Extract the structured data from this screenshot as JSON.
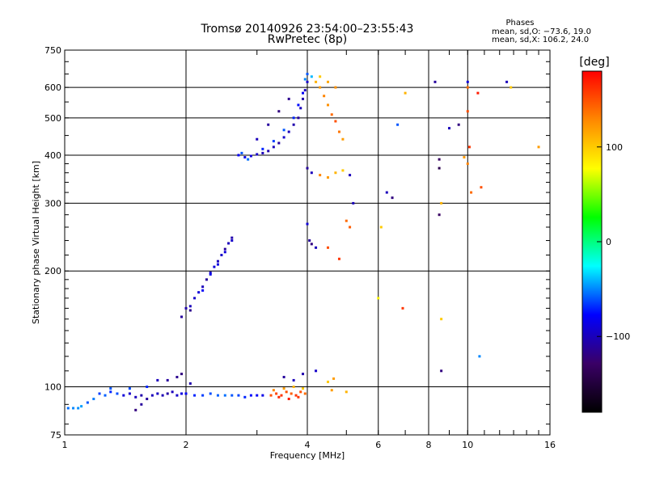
{
  "chart_data": {
    "type": "scatter",
    "title": "Tromsø 20140926 23:54:00–23:55:43",
    "subtitle": "RwPretec (8p)",
    "xlabel": "Frequency [MHz]",
    "ylabel": "Stationary phase Virtual Height [km]",
    "x_scale": "log",
    "y_scale": "log",
    "xlim": [
      1,
      16
    ],
    "ylim": [
      75,
      750
    ],
    "x_ticks": [
      1,
      2,
      4,
      6,
      8,
      10,
      16
    ],
    "x_tick_labels": [
      "1",
      "2",
      "4",
      "6",
      "8",
      "10",
      "16"
    ],
    "y_ticks": [
      75,
      100,
      200,
      300,
      400,
      500,
      600,
      750
    ],
    "y_tick_labels": [
      "75",
      "100",
      "200",
      "300",
      "400",
      "500",
      "600",
      "750"
    ],
    "grid": true,
    "legend": {
      "title": "Phases",
      "lines": [
        "mean, sd,O: −73.6, 19.0",
        "mean, sd,X: 106.2, 24.0"
      ],
      "position": "top-right"
    },
    "colorbar": {
      "label": "[deg]",
      "min": -180,
      "max": 180,
      "ticks": [
        100,
        0,
        -100
      ],
      "tick_labels": [
        "100",
        "0",
        "−100"
      ],
      "colors": [
        "#000000",
        "#3a0066",
        "#0000ff",
        "#00ffff",
        "#00ff00",
        "#ffff00",
        "#ff8800",
        "#ff0000"
      ]
    },
    "points": [
      [
        1.02,
        88,
        -55
      ],
      [
        1.05,
        88,
        -50
      ],
      [
        1.08,
        88,
        -48
      ],
      [
        1.1,
        89,
        -45
      ],
      [
        1.14,
        91,
        -60
      ],
      [
        1.18,
        93,
        -52
      ],
      [
        1.22,
        96,
        -65
      ],
      [
        1.26,
        95,
        -58
      ],
      [
        1.3,
        97,
        -70
      ],
      [
        1.35,
        96,
        -62
      ],
      [
        1.4,
        95,
        -90
      ],
      [
        1.45,
        96,
        -95
      ],
      [
        1.5,
        94,
        -100
      ],
      [
        1.55,
        95,
        -105
      ],
      [
        1.6,
        93,
        -110
      ],
      [
        1.65,
        95,
        -100
      ],
      [
        1.7,
        96,
        -98
      ],
      [
        1.75,
        95,
        -102
      ],
      [
        1.8,
        96,
        -108
      ],
      [
        1.85,
        97,
        -100
      ],
      [
        1.9,
        95,
        -95
      ],
      [
        1.95,
        96,
        -88
      ],
      [
        2.0,
        96,
        -80
      ],
      [
        2.1,
        95,
        -70
      ],
      [
        2.2,
        95,
        -65
      ],
      [
        2.3,
        96,
        -62
      ],
      [
        2.4,
        95,
        -58
      ],
      [
        2.5,
        95,
        -55
      ],
      [
        2.6,
        95,
        -60
      ],
      [
        2.7,
        95,
        -64
      ],
      [
        2.8,
        94,
        -70
      ],
      [
        2.9,
        95,
        -75
      ],
      [
        3.0,
        95,
        -80
      ],
      [
        3.1,
        95,
        -85
      ],
      [
        1.3,
        99,
        -60
      ],
      [
        1.45,
        99,
        -62
      ],
      [
        1.6,
        100,
        -70
      ],
      [
        1.7,
        104,
        -100
      ],
      [
        1.8,
        104,
        -110
      ],
      [
        1.9,
        106,
        -115
      ],
      [
        1.95,
        108,
        -120
      ],
      [
        2.05,
        102,
        -105
      ],
      [
        1.55,
        90,
        -110
      ],
      [
        1.5,
        87,
        -120
      ],
      [
        3.25,
        95,
        150
      ],
      [
        3.35,
        96,
        155
      ],
      [
        3.45,
        95,
        160
      ],
      [
        3.55,
        97,
        150
      ],
      [
        3.65,
        96,
        145
      ],
      [
        3.75,
        95,
        160
      ],
      [
        3.85,
        97,
        150
      ],
      [
        3.95,
        96,
        140
      ],
      [
        3.3,
        98,
        130
      ],
      [
        3.5,
        99,
        120
      ],
      [
        3.7,
        100,
        110
      ],
      [
        3.9,
        99,
        100
      ],
      [
        3.4,
        94,
        165
      ],
      [
        3.6,
        93,
        170
      ],
      [
        3.8,
        94,
        160
      ],
      [
        4.6,
        98,
        120
      ],
      [
        5.0,
        97,
        110
      ],
      [
        3.5,
        106,
        -110
      ],
      [
        3.7,
        104,
        -100
      ],
      [
        3.9,
        108,
        -105
      ],
      [
        4.2,
        110,
        -95
      ],
      [
        4.5,
        103,
        100
      ],
      [
        4.65,
        105,
        120
      ],
      [
        1.95,
        152,
        -110
      ],
      [
        2.0,
        160,
        -105
      ],
      [
        2.05,
        162,
        -100
      ],
      [
        2.1,
        170,
        -95
      ],
      [
        2.15,
        176,
        -90
      ],
      [
        2.2,
        182,
        -100
      ],
      [
        2.25,
        190,
        -110
      ],
      [
        2.3,
        198,
        -95
      ],
      [
        2.35,
        205,
        -90
      ],
      [
        2.4,
        212,
        -100
      ],
      [
        2.45,
        220,
        -95
      ],
      [
        2.5,
        228,
        -110
      ],
      [
        2.55,
        236,
        -100
      ],
      [
        2.6,
        244,
        -105
      ],
      [
        2.2,
        178,
        -80
      ],
      [
        2.3,
        196,
        -85
      ],
      [
        2.4,
        208,
        -88
      ],
      [
        2.5,
        224,
        -90
      ],
      [
        2.6,
        240,
        -95
      ],
      [
        2.05,
        158,
        -115
      ],
      [
        2.7,
        400,
        -80
      ],
      [
        2.8,
        395,
        -85
      ],
      [
        2.9,
        398,
        -90
      ],
      [
        3.0,
        402,
        -95
      ],
      [
        3.1,
        405,
        -100
      ],
      [
        3.2,
        410,
        -105
      ],
      [
        3.3,
        420,
        -100
      ],
      [
        3.4,
        430,
        -110
      ],
      [
        3.5,
        445,
        -95
      ],
      [
        3.6,
        460,
        -100
      ],
      [
        3.7,
        480,
        -105
      ],
      [
        3.8,
        500,
        -110
      ],
      [
        3.85,
        530,
        -100
      ],
      [
        3.9,
        560,
        -105
      ],
      [
        3.95,
        590,
        -100
      ],
      [
        4.0,
        620,
        -95
      ],
      [
        3.1,
        415,
        -70
      ],
      [
        3.3,
        435,
        -65
      ],
      [
        3.5,
        465,
        -60
      ],
      [
        3.7,
        500,
        -70
      ],
      [
        3.8,
        540,
        -75
      ],
      [
        3.9,
        580,
        -80
      ],
      [
        3.4,
        520,
        -120
      ],
      [
        3.6,
        560,
        -115
      ],
      [
        3.2,
        480,
        -110
      ],
      [
        3.0,
        440,
        -100
      ],
      [
        2.75,
        405,
        -60
      ],
      [
        2.85,
        390,
        -55
      ],
      [
        4.0,
        650,
        -60
      ],
      [
        3.95,
        630,
        -50
      ],
      [
        4.1,
        640,
        -40
      ],
      [
        4.2,
        620,
        110
      ],
      [
        4.3,
        600,
        120
      ],
      [
        4.4,
        570,
        130
      ],
      [
        4.5,
        540,
        125
      ],
      [
        4.6,
        510,
        140
      ],
      [
        4.7,
        490,
        150
      ],
      [
        4.8,
        460,
        135
      ],
      [
        4.9,
        440,
        120
      ],
      [
        4.3,
        640,
        100
      ],
      [
        4.5,
        620,
        115
      ],
      [
        4.7,
        600,
        125
      ],
      [
        4.0,
        370,
        -110
      ],
      [
        4.1,
        360,
        -100
      ],
      [
        4.3,
        355,
        130
      ],
      [
        4.5,
        350,
        120
      ],
      [
        4.7,
        360,
        110
      ],
      [
        4.9,
        365,
        100
      ],
      [
        5.1,
        355,
        -100
      ],
      [
        4.0,
        265,
        -90
      ],
      [
        4.05,
        240,
        -110
      ],
      [
        4.1,
        235,
        -120
      ],
      [
        4.2,
        230,
        -100
      ],
      [
        5.0,
        270,
        140
      ],
      [
        5.1,
        260,
        145
      ],
      [
        4.5,
        230,
        150
      ],
      [
        4.8,
        215,
        160
      ],
      [
        5.2,
        300,
        -100
      ],
      [
        6.0,
        170,
        80
      ],
      [
        6.3,
        320,
        -100
      ],
      [
        6.5,
        310,
        -120
      ],
      [
        6.9,
        160,
        160
      ],
      [
        7.0,
        580,
        110
      ],
      [
        6.7,
        480,
        -60
      ],
      [
        6.1,
        260,
        100
      ],
      [
        8.3,
        620,
        -110
      ],
      [
        8.5,
        390,
        -130
      ],
      [
        8.5,
        370,
        -140
      ],
      [
        8.6,
        300,
        110
      ],
      [
        8.5,
        280,
        -130
      ],
      [
        8.6,
        150,
        100
      ],
      [
        8.6,
        110,
        -120
      ],
      [
        9.0,
        470,
        -100
      ],
      [
        9.5,
        480,
        -120
      ],
      [
        9.8,
        395,
        120
      ],
      [
        10.0,
        620,
        -90
      ],
      [
        10.0,
        600,
        140
      ],
      [
        10.0,
        520,
        150
      ],
      [
        10.1,
        420,
        160
      ],
      [
        10.2,
        320,
        140
      ],
      [
        10.0,
        380,
        130
      ],
      [
        10.6,
        580,
        170
      ],
      [
        10.8,
        330,
        150
      ],
      [
        10.7,
        120,
        -50
      ],
      [
        12.5,
        620,
        -100
      ],
      [
        12.8,
        600,
        100
      ],
      [
        15.0,
        420,
        120
      ]
    ]
  }
}
